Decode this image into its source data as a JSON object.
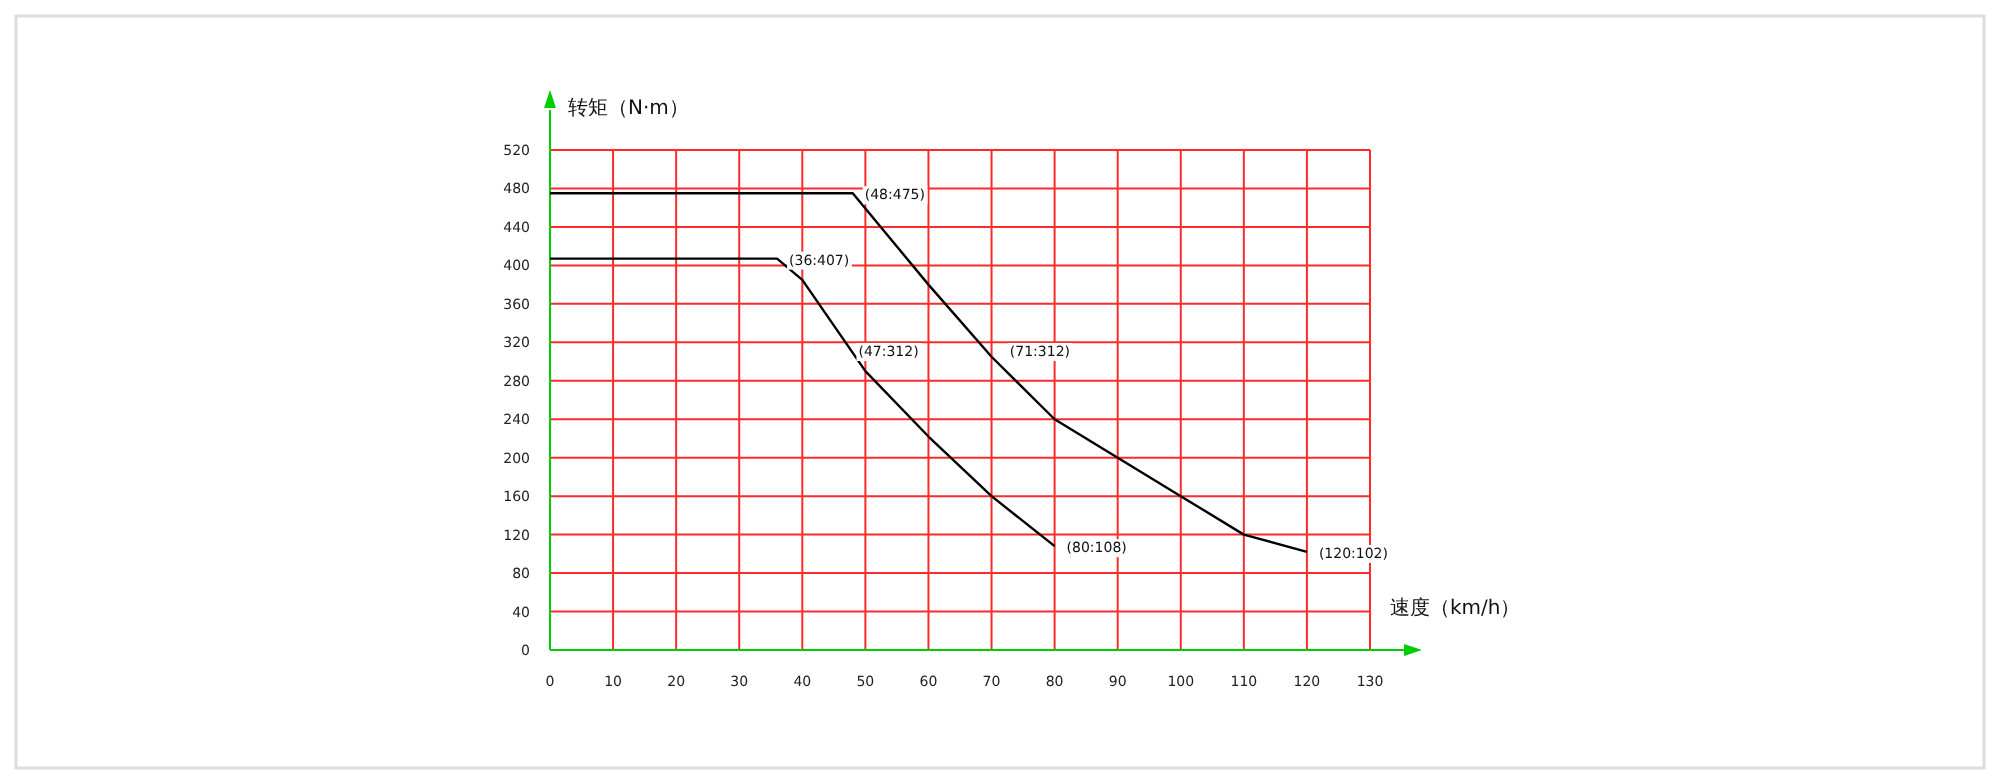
{
  "chart_data": {
    "type": "line",
    "xlabel": "速度（km/h）",
    "ylabel": "转矩（N·m）",
    "xlim": [
      0,
      130
    ],
    "ylim": [
      0,
      520
    ],
    "xticks": [
      0,
      10,
      20,
      30,
      40,
      50,
      60,
      70,
      80,
      90,
      100,
      110,
      120,
      130
    ],
    "yticks": [
      0,
      40,
      80,
      120,
      160,
      200,
      240,
      280,
      320,
      360,
      400,
      440,
      480,
      520
    ],
    "grid": true,
    "series": [
      {
        "color": "#000000",
        "x": [
          0,
          48,
          60,
          70,
          80,
          90,
          100,
          110,
          120
        ],
        "values": [
          475,
          475,
          380,
          305,
          240,
          200,
          160,
          120,
          102
        ]
      },
      {
        "color": "#000000",
        "x": [
          0,
          36,
          40,
          50,
          60,
          70,
          80
        ],
        "values": [
          407,
          407,
          385,
          290,
          222,
          160,
          108
        ]
      }
    ],
    "annotations": [
      {
        "text": "(48:475)",
        "x": 48,
        "y": 475
      },
      {
        "text": "(36:407)",
        "x": 36,
        "y": 407
      },
      {
        "text": "(47:312)",
        "x": 47,
        "y": 312
      },
      {
        "text": "(71:312)",
        "x": 71,
        "y": 312
      },
      {
        "text": "(80:108)",
        "x": 80,
        "y": 108
      },
      {
        "text": "(120:102)",
        "x": 120,
        "y": 102
      }
    ]
  }
}
